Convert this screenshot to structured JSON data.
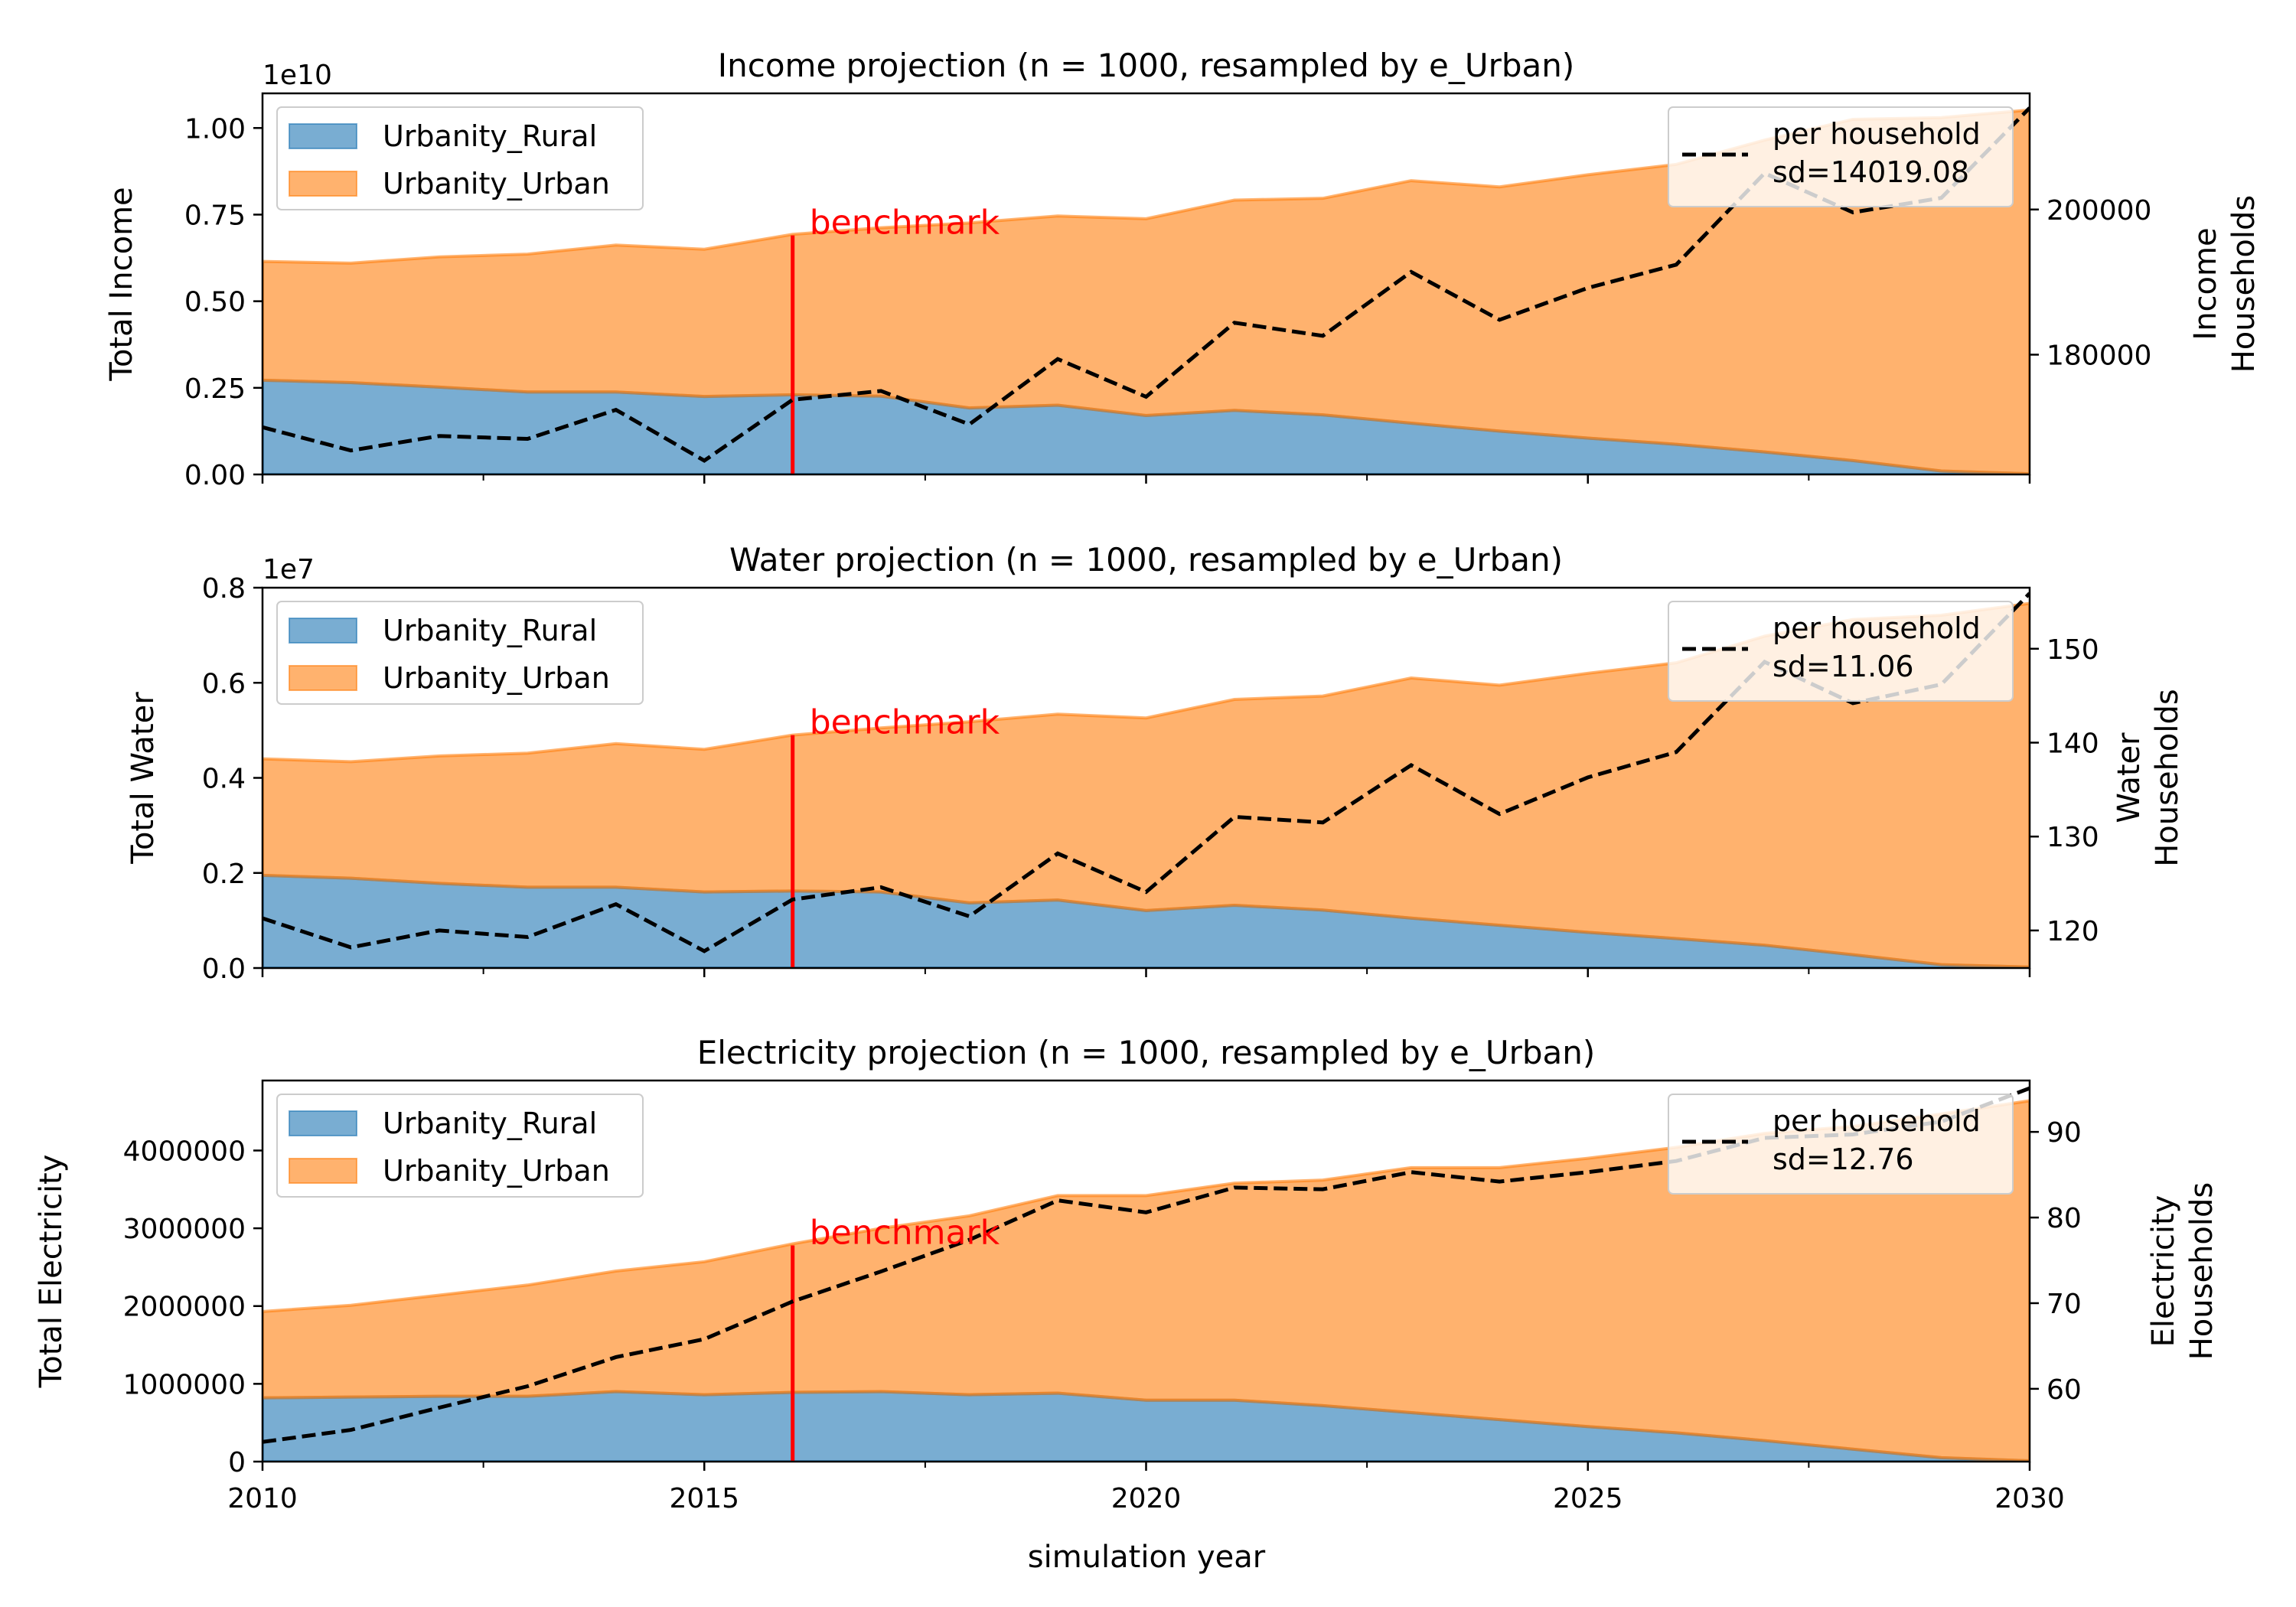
{
  "figure": {
    "xlabel": "simulation year"
  },
  "chart_data": [
    {
      "type": "area",
      "title": "Income projection (n = 1000, resampled by e_Urban)",
      "ylabel": "Total Income",
      "y_offset_label": "1e10",
      "xlim": [
        2010,
        2030
      ],
      "ylim": [
        0,
        11000000000.0
      ],
      "y_ticks": [
        0,
        2500000000.0,
        5000000000.0,
        7500000000.0,
        10000000000.0
      ],
      "y_tick_labels": [
        "0.00",
        "0.25",
        "0.50",
        "0.75",
        "1.00"
      ],
      "x": [
        2010,
        2011,
        2012,
        2013,
        2014,
        2015,
        2016,
        2017,
        2018,
        2019,
        2020,
        2021,
        2022,
        2023,
        2024,
        2025,
        2026,
        2027,
        2028,
        2029,
        2030
      ],
      "series": [
        {
          "name": "Urbanity_Rural",
          "color": "#1f77b4",
          "values": [
            2720000000.0,
            2650000000.0,
            2520000000.0,
            2380000000.0,
            2380000000.0,
            2250000000.0,
            2300000000.0,
            2260000000.0,
            1920000000.0,
            2000000000.0,
            1700000000.0,
            1850000000.0,
            1720000000.0,
            1480000000.0,
            1250000000.0,
            1050000000.0,
            870000000.0,
            650000000.0,
            400000000.0,
            100000000.0,
            20000000.0
          ]
        },
        {
          "name": "Urbanity_Urban",
          "color": "#ff7f0e",
          "values": [
            3430000000.0,
            3450000000.0,
            3760000000.0,
            3980000000.0,
            4240000000.0,
            4250000000.0,
            4630000000.0,
            4860000000.0,
            5340000000.0,
            5460000000.0,
            5680000000.0,
            6070000000.0,
            6250000000.0,
            7000000000.0,
            7050000000.0,
            7600000000.0,
            8080000000.0,
            9000000000.0,
            9850000000.0,
            10200000000.0,
            10500000000.0
          ]
        }
      ],
      "secondary_axis": {
        "label_lines": [
          "Income",
          "Households"
        ],
        "ylim": [
          163500,
          216000
        ],
        "ticks": [
          180000,
          200000
        ],
        "tick_labels": [
          "180000",
          "200000"
        ],
        "series": {
          "name": "per household",
          "values": [
            170000,
            166800,
            168800,
            168400,
            172400,
            165400,
            173800,
            175000,
            170400,
            179400,
            174200,
            184400,
            182600,
            191400,
            184800,
            189200,
            192400,
            205000,
            199600,
            201600,
            214000
          ]
        }
      },
      "legend_left": {
        "position": "upper left",
        "entries": [
          "Urbanity_Rural",
          "Urbanity_Urban"
        ]
      },
      "legend_right": {
        "position": "upper right",
        "line1": "per household",
        "line2": "sd=14019.08"
      },
      "benchmark": {
        "x": 2016,
        "label": "benchmark",
        "top_value": 6900000000.0
      }
    },
    {
      "type": "area",
      "title": "Water projection (n = 1000, resampled by e_Urban)",
      "ylabel": "Total Water",
      "y_offset_label": "1e7",
      "xlim": [
        2010,
        2030
      ],
      "ylim": [
        0,
        8000000.0
      ],
      "y_ticks": [
        0,
        2000000.0,
        4000000.0,
        6000000.0,
        8000000.0
      ],
      "y_tick_labels": [
        "0.0",
        "0.2",
        "0.4",
        "0.6",
        "0.8"
      ],
      "x": [
        2010,
        2011,
        2012,
        2013,
        2014,
        2015,
        2016,
        2017,
        2018,
        2019,
        2020,
        2021,
        2022,
        2023,
        2024,
        2025,
        2026,
        2027,
        2028,
        2029,
        2030
      ],
      "series": [
        {
          "name": "Urbanity_Rural",
          "color": "#1f77b4",
          "values": [
            1950000.0,
            1890000.0,
            1780000.0,
            1700000.0,
            1700000.0,
            1600000.0,
            1620000.0,
            1600000.0,
            1370000.0,
            1430000.0,
            1210000.0,
            1320000.0,
            1220000.0,
            1050000.0,
            900000.0,
            750000.0,
            620000.0,
            480000.0,
            280000.0,
            70000.0,
            20000.0
          ]
        },
        {
          "name": "Urbanity_Urban",
          "color": "#ff7f0e",
          "values": [
            2450000.0,
            2450000.0,
            2680000.0,
            2820000.0,
            3020000.0,
            3000000.0,
            3280000.0,
            3450000.0,
            3810000.0,
            3910000.0,
            4050000.0,
            4330000.0,
            4500000.0,
            5050000.0,
            5050000.0,
            5450000.0,
            5800000.0,
            6500000.0,
            7050000.0,
            7350000.0,
            7650000.0
          ]
        }
      ],
      "secondary_axis": {
        "label_lines": [
          "Water",
          "Households"
        ],
        "ylim": [
          116,
          156.5
        ],
        "ticks": [
          120,
          130,
          140,
          150
        ],
        "tick_labels": [
          "120",
          "130",
          "140",
          "150"
        ],
        "series": {
          "name": "per household",
          "values": [
            121.3,
            118.2,
            120.0,
            119.3,
            122.8,
            117.8,
            123.3,
            124.6,
            121.5,
            128.2,
            124.1,
            132.1,
            131.5,
            137.6,
            132.4,
            136.3,
            139.0,
            148.6,
            144.2,
            146.2,
            155.9
          ]
        }
      },
      "legend_left": {
        "position": "upper left",
        "entries": [
          "Urbanity_Rural",
          "Urbanity_Urban"
        ]
      },
      "legend_right": {
        "position": "upper right",
        "line1": "per household",
        "line2": "sd=11.06"
      },
      "benchmark": {
        "x": 2016,
        "label": "benchmark",
        "top_value": 4900000.0
      }
    },
    {
      "type": "area",
      "title": "Electricity projection (n = 1000, resampled by e_Urban)",
      "ylabel": "Total Electricity",
      "y_offset_label": "",
      "xlim": [
        2010,
        2030
      ],
      "ylim": [
        0,
        4900000
      ],
      "y_ticks": [
        0,
        1000000,
        2000000,
        3000000,
        4000000
      ],
      "y_tick_labels": [
        "0",
        "1000000",
        "2000000",
        "3000000",
        "4000000"
      ],
      "x": [
        2010,
        2011,
        2012,
        2013,
        2014,
        2015,
        2016,
        2017,
        2018,
        2019,
        2020,
        2021,
        2022,
        2023,
        2024,
        2025,
        2026,
        2027,
        2028,
        2029,
        2030
      ],
      "series": [
        {
          "name": "Urbanity_Rural",
          "color": "#1f77b4",
          "values": [
            820000,
            830000,
            840000,
            840000,
            900000,
            860000,
            890000,
            900000,
            860000,
            880000,
            790000,
            790000,
            720000,
            630000,
            540000,
            450000,
            370000,
            270000,
            160000,
            50000,
            10000
          ]
        },
        {
          "name": "Urbanity_Urban",
          "color": "#ff7f0e",
          "values": [
            1110000,
            1180000,
            1300000,
            1430000,
            1550000,
            1710000,
            1910000,
            2100000,
            2300000,
            2540000,
            2630000,
            2790000,
            2900000,
            3150000,
            3240000,
            3450000,
            3670000,
            3950000,
            4150000,
            4420000,
            4630000
          ]
        }
      ],
      "secondary_axis": {
        "label_lines": [
          "Electricity",
          "Households"
        ],
        "ylim": [
          51.5,
          96
        ],
        "ticks": [
          60,
          70,
          80,
          90
        ],
        "tick_labels": [
          "60",
          "70",
          "80",
          "90"
        ],
        "series": {
          "name": "per household",
          "values": [
            53.8,
            55.2,
            57.8,
            60.3,
            63.7,
            65.8,
            70.2,
            73.7,
            77.4,
            82.0,
            80.6,
            83.5,
            83.3,
            85.3,
            84.2,
            85.3,
            86.6,
            89.3,
            89.7,
            91.2,
            95.1
          ]
        }
      },
      "legend_left": {
        "position": "upper left",
        "entries": [
          "Urbanity_Rural",
          "Urbanity_Urban"
        ]
      },
      "legend_right": {
        "position": "upper right",
        "line1": "per household",
        "line2": "sd=12.76"
      },
      "benchmark": {
        "x": 2016,
        "label": "benchmark",
        "top_value": 2780000
      }
    }
  ],
  "shared_x_axis": {
    "ticks": [
      2010,
      2015,
      2020,
      2025,
      2030
    ],
    "tick_labels": [
      "2010",
      "2015",
      "2020",
      "2025",
      "2030"
    ],
    "minor_ticks": [
      2012.5,
      2017.5,
      2022.5,
      2027.5
    ]
  }
}
